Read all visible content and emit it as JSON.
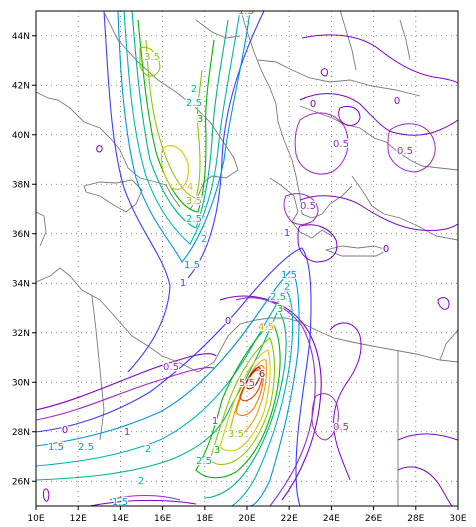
{
  "map": {
    "lon_labels": [
      "10E",
      "12E",
      "14E",
      "16E",
      "18E",
      "20E",
      "22E",
      "24E",
      "26E",
      "28E",
      "30E"
    ],
    "lat_labels": [
      "26N",
      "28N",
      "30N",
      "32N",
      "34N",
      "36N",
      "38N",
      "40N",
      "42N",
      "44N"
    ],
    "lon_range": [
      10,
      30
    ],
    "lat_range": [
      25,
      45
    ],
    "gridlines": "dotted",
    "coastlines": "gray"
  },
  "contour_levels": [
    "0",
    "0.5",
    "1",
    "1.5",
    "2",
    "2.5",
    "3",
    "3.5",
    "4",
    "4.5",
    "5",
    "5.5",
    "6"
  ],
  "contour_colors": {
    "0": "#8000c8",
    "0.5": "#9a2ac8",
    "1": "#3c3cff",
    "1.5": "#0096dc",
    "2": "#00b4b4",
    "2.5": "#00b48c",
    "3": "#00b400",
    "3.5": "#8cc800",
    "4": "#dcc800",
    "4.5": "#f0a000",
    "5": "#f07800",
    "5.5": "#dc3c00",
    "6": "#a01414"
  },
  "contour_labels": [
    {
      "text": "1.5",
      "color": "#0096dc"
    },
    {
      "text": "3.5",
      "color": "#8cc800"
    },
    {
      "text": "2",
      "color": "#00b4b4"
    },
    {
      "text": "2.5",
      "color": "#00b48c"
    },
    {
      "text": "3",
      "color": "#00b400"
    },
    {
      "text": "4",
      "color": "#dcc800"
    },
    {
      "text": "3.5",
      "color": "#8cc800"
    },
    {
      "text": "2.5",
      "color": "#00b48c"
    },
    {
      "text": "2",
      "color": "#00b4b4"
    },
    {
      "text": "1.5",
      "color": "#0096dc"
    },
    {
      "text": "1",
      "color": "#3c3cff"
    },
    {
      "text": "0",
      "color": "#8000c8"
    },
    {
      "text": "0",
      "color": "#8000c8"
    },
    {
      "text": "0.5",
      "color": "#9a2ac8"
    },
    {
      "text": "0.5",
      "color": "#9a2ac8"
    },
    {
      "text": "0.5",
      "color": "#9a2ac8"
    },
    {
      "text": "0",
      "color": "#8000c8"
    },
    {
      "text": "1",
      "color": "#3c3cff"
    },
    {
      "text": "1.5",
      "color": "#0096dc"
    },
    {
      "text": "2",
      "color": "#00b4b4"
    },
    {
      "text": "2.5",
      "color": "#00b48c"
    },
    {
      "text": "3",
      "color": "#00b400"
    },
    {
      "text": "0",
      "color": "#8000c8"
    },
    {
      "text": "4.5",
      "color": "#f0a000"
    },
    {
      "text": "6",
      "color": "#a01414"
    },
    {
      "text": "5.5",
      "color": "#dc3c00"
    },
    {
      "text": "0.5",
      "color": "#9a2ac8"
    },
    {
      "text": "1",
      "color": "#3c3cff"
    },
    {
      "text": "0",
      "color": "#8000c8"
    },
    {
      "text": "3.5",
      "color": "#8cc800"
    },
    {
      "text": "3",
      "color": "#00b400"
    },
    {
      "text": "2.5",
      "color": "#00b48c"
    },
    {
      "text": "1.5",
      "color": "#0096dc"
    },
    {
      "text": "2.5",
      "color": "#00b48c"
    },
    {
      "text": "2",
      "color": "#00b4b4"
    },
    {
      "text": "1",
      "color": "#3c3cff"
    },
    {
      "text": "0.5",
      "color": "#9a2ac8"
    },
    {
      "text": "2",
      "color": "#00b4b4"
    },
    {
      "text": "1.5",
      "color": "#0096dc"
    }
  ]
}
